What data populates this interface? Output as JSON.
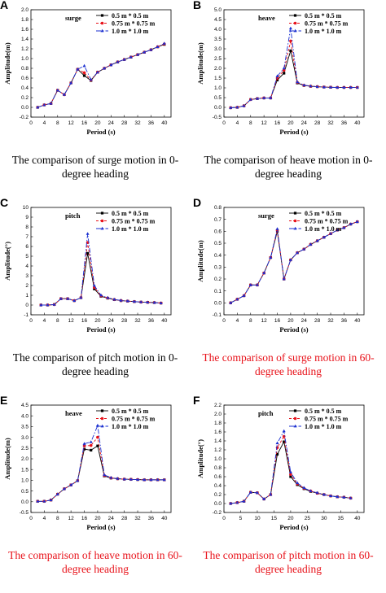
{
  "panels": [
    {
      "letter": "A",
      "caption": "The comparison of surge motion in 0-degree heading",
      "caption_color": "#000000"
    },
    {
      "letter": "B",
      "caption": "The comparison of heave motion in 0-degree heading",
      "caption_color": "#000000"
    },
    {
      "letter": "C",
      "caption": "The comparison of pitch motion in 0-degree heading",
      "caption_color": "#000000"
    },
    {
      "letter": "D",
      "caption": "The comparison of surge motion in 60-degree heading",
      "caption_color": "#e8121a"
    },
    {
      "letter": "E",
      "caption": "The comparison of heave motion in 60-degree heading",
      "caption_color": "#e8121a"
    },
    {
      "letter": "F",
      "caption": "The comparison of pitch motion in 60-degree heading",
      "caption_color": "#e8121a"
    }
  ],
  "series_style": [
    {
      "color": "#000000",
      "marker": "square",
      "dash": ""
    },
    {
      "color": "#e8121a",
      "marker": "circle",
      "dash": "3,2"
    },
    {
      "color": "#1a2fd0",
      "marker": "triangle",
      "dash": "6,2,1.5,2"
    }
  ],
  "chart_data": [
    {
      "type": "line",
      "title": "surge",
      "xlabel": "Period (s)",
      "ylabel": "Amplitude(m)",
      "xlim": [
        0,
        42
      ],
      "ylim": [
        -0.2,
        2.0
      ],
      "xticks": [
        0,
        4,
        8,
        12,
        16,
        20,
        24,
        28,
        32,
        36,
        40
      ],
      "yticks": [
        "-0.2",
        "0.0",
        "0.2",
        "0.4",
        "0.6",
        "0.8",
        "1.0",
        "1.2",
        "1.4",
        "1.6",
        "1.8",
        "2.0"
      ],
      "legend": "top-right",
      "x": [
        2,
        4,
        6,
        8,
        10,
        12,
        14,
        16,
        18,
        20,
        22,
        24,
        26,
        28,
        30,
        32,
        34,
        36,
        38,
        40
      ],
      "series": [
        {
          "name": "0.5 m * 0.5 m",
          "values": [
            0.0,
            0.05,
            0.08,
            0.35,
            0.26,
            0.5,
            0.78,
            0.65,
            0.55,
            0.72,
            0.8,
            0.87,
            0.93,
            0.98,
            1.03,
            1.08,
            1.13,
            1.18,
            1.24,
            1.29
          ]
        },
        {
          "name": "0.75 m * 0.75 m",
          "values": [
            0.0,
            0.05,
            0.08,
            0.35,
            0.26,
            0.5,
            0.78,
            0.71,
            0.56,
            0.72,
            0.8,
            0.87,
            0.93,
            0.98,
            1.03,
            1.08,
            1.13,
            1.18,
            1.24,
            1.3
          ]
        },
        {
          "name": "1.0 m * 1.0 m",
          "values": [
            0.0,
            0.05,
            0.08,
            0.35,
            0.26,
            0.5,
            0.78,
            0.85,
            0.57,
            0.72,
            0.8,
            0.87,
            0.93,
            0.98,
            1.03,
            1.08,
            1.13,
            1.18,
            1.24,
            1.31
          ]
        }
      ]
    },
    {
      "type": "line",
      "title": "heave",
      "xlabel": "Period (s)",
      "ylabel": "Amplitude(m)",
      "xlim": [
        0,
        42
      ],
      "ylim": [
        -0.5,
        5.0
      ],
      "xticks": [
        0,
        4,
        8,
        12,
        16,
        20,
        24,
        28,
        32,
        36,
        40
      ],
      "yticks": [
        "-0.5",
        "0.0",
        "0.5",
        "1.0",
        "1.5",
        "2.0",
        "2.5",
        "3.0",
        "3.5",
        "4.0",
        "4.5",
        "5.0"
      ],
      "legend": "top-right",
      "x": [
        2,
        4,
        6,
        8,
        10,
        12,
        14,
        16,
        18,
        20,
        22,
        24,
        26,
        28,
        30,
        32,
        34,
        36,
        38,
        40
      ],
      "series": [
        {
          "name": "0.5 m * 0.5 m",
          "values": [
            -0.02,
            0.0,
            0.08,
            0.4,
            0.45,
            0.48,
            0.48,
            1.4,
            1.75,
            2.9,
            1.25,
            1.12,
            1.08,
            1.06,
            1.04,
            1.03,
            1.02,
            1.02,
            1.02,
            1.02
          ]
        },
        {
          "name": "0.75 m * 0.75 m",
          "values": [
            -0.02,
            0.0,
            0.08,
            0.4,
            0.45,
            0.48,
            0.48,
            1.5,
            1.9,
            3.4,
            1.28,
            1.13,
            1.08,
            1.06,
            1.04,
            1.03,
            1.02,
            1.02,
            1.02,
            1.02
          ]
        },
        {
          "name": "1.0 m * 1.0 m",
          "values": [
            -0.02,
            0.0,
            0.08,
            0.4,
            0.45,
            0.48,
            0.48,
            1.6,
            2.0,
            4.05,
            1.3,
            1.14,
            1.09,
            1.06,
            1.04,
            1.03,
            1.02,
            1.02,
            1.02,
            1.02
          ]
        }
      ]
    },
    {
      "type": "line",
      "title": "pitch",
      "xlabel": "Period (s)",
      "ylabel": "Amplitude(°)",
      "xlim": [
        0,
        42
      ],
      "ylim": [
        -1,
        10
      ],
      "xticks": [
        0,
        4,
        8,
        12,
        16,
        20,
        24,
        28,
        32,
        36,
        40
      ],
      "yticks": [
        "-1",
        "0",
        "1",
        "2",
        "3",
        "4",
        "5",
        "6",
        "7",
        "8",
        "9",
        "10"
      ],
      "legend": "top-right",
      "x": [
        3,
        5,
        7,
        9,
        11,
        13,
        15,
        17,
        19,
        21,
        23,
        25,
        27,
        29,
        31,
        33,
        35,
        37,
        39
      ],
      "series": [
        {
          "name": "0.5 m * 0.5 m",
          "values": [
            0.0,
            0.0,
            0.05,
            0.65,
            0.65,
            0.45,
            0.75,
            5.3,
            1.65,
            0.9,
            0.7,
            0.55,
            0.45,
            0.4,
            0.35,
            0.3,
            0.28,
            0.25,
            0.2
          ]
        },
        {
          "name": "0.75 m * 0.75 m",
          "values": [
            0.0,
            0.0,
            0.05,
            0.65,
            0.65,
            0.45,
            0.75,
            6.4,
            1.8,
            0.95,
            0.72,
            0.56,
            0.46,
            0.4,
            0.35,
            0.3,
            0.28,
            0.25,
            0.2
          ]
        },
        {
          "name": "1.0 m * 1.0 m",
          "values": [
            0.0,
            0.0,
            0.05,
            0.65,
            0.65,
            0.45,
            0.75,
            7.3,
            2.0,
            1.0,
            0.75,
            0.58,
            0.47,
            0.41,
            0.36,
            0.31,
            0.28,
            0.25,
            0.2
          ]
        }
      ]
    },
    {
      "type": "line",
      "title": "surge",
      "xlabel": "Period (s)",
      "ylabel": "Amplitude(m)",
      "xlim": [
        0,
        42
      ],
      "ylim": [
        -0.1,
        0.8
      ],
      "xticks": [
        0,
        4,
        8,
        12,
        16,
        20,
        24,
        28,
        32,
        36,
        40
      ],
      "yticks": [
        "-0.1",
        "0.0",
        "0.1",
        "0.2",
        "0.3",
        "0.4",
        "0.5",
        "0.6",
        "0.7",
        "0.8"
      ],
      "legend": "top-right",
      "x": [
        2,
        4,
        6,
        8,
        10,
        12,
        14,
        16,
        18,
        20,
        22,
        24,
        26,
        28,
        30,
        32,
        34,
        36,
        38,
        40
      ],
      "series": [
        {
          "name": "0.5 m * 0.5 m",
          "values": [
            0.0,
            0.03,
            0.06,
            0.15,
            0.15,
            0.25,
            0.38,
            0.6,
            0.2,
            0.36,
            0.42,
            0.45,
            0.49,
            0.52,
            0.55,
            0.58,
            0.61,
            0.63,
            0.66,
            0.68
          ]
        },
        {
          "name": "0.75 m * 0.75 m",
          "values": [
            0.0,
            0.03,
            0.06,
            0.15,
            0.15,
            0.25,
            0.38,
            0.61,
            0.2,
            0.36,
            0.42,
            0.45,
            0.49,
            0.52,
            0.55,
            0.58,
            0.61,
            0.63,
            0.66,
            0.68
          ]
        },
        {
          "name": "1.0 m * 1.0 m",
          "values": [
            0.0,
            0.03,
            0.06,
            0.15,
            0.15,
            0.25,
            0.38,
            0.62,
            0.2,
            0.36,
            0.42,
            0.45,
            0.49,
            0.52,
            0.55,
            0.58,
            0.61,
            0.63,
            0.66,
            0.68
          ]
        }
      ]
    },
    {
      "type": "line",
      "title": "heave",
      "xlabel": "Period (s)",
      "ylabel": "Amplitude(m)",
      "xlim": [
        0,
        42
      ],
      "ylim": [
        -0.5,
        4.5
      ],
      "xticks": [
        0,
        4,
        8,
        12,
        16,
        20,
        24,
        28,
        32,
        36,
        40
      ],
      "yticks": [
        "-0.5",
        "0.0",
        "0.5",
        "1.0",
        "1.5",
        "2.0",
        "2.5",
        "3.0",
        "3.5",
        "4.0",
        "4.5"
      ],
      "legend": "top-right",
      "x": [
        2,
        4,
        6,
        8,
        10,
        12,
        14,
        16,
        18,
        20,
        22,
        24,
        26,
        28,
        30,
        32,
        34,
        36,
        38,
        40
      ],
      "series": [
        {
          "name": "0.5 m * 0.5 m",
          "values": [
            0.02,
            0.02,
            0.08,
            0.35,
            0.6,
            0.78,
            0.98,
            2.45,
            2.4,
            2.6,
            1.2,
            1.1,
            1.07,
            1.05,
            1.04,
            1.03,
            1.02,
            1.02,
            1.02,
            1.02
          ]
        },
        {
          "name": "0.75 m * 0.75 m",
          "values": [
            0.02,
            0.02,
            0.08,
            0.35,
            0.6,
            0.78,
            0.98,
            2.6,
            2.62,
            3.0,
            1.22,
            1.11,
            1.07,
            1.05,
            1.04,
            1.03,
            1.02,
            1.02,
            1.02,
            1.02
          ]
        },
        {
          "name": "1.0 m * 1.0 m",
          "values": [
            0.02,
            0.02,
            0.08,
            0.35,
            0.6,
            0.78,
            0.98,
            2.7,
            2.78,
            3.55,
            1.25,
            1.12,
            1.08,
            1.05,
            1.04,
            1.03,
            1.02,
            1.02,
            1.02,
            1.02
          ]
        }
      ]
    },
    {
      "type": "line",
      "title": "pitch",
      "xlabel": "Period (s)",
      "ylabel": "Amplitude(°)",
      "xlim": [
        0,
        42
      ],
      "ylim": [
        -0.2,
        2.2
      ],
      "xticks": [
        0,
        5,
        10,
        15,
        20,
        25,
        30,
        35,
        40
      ],
      "yticks": [
        "-0.2",
        "0.0",
        "0.2",
        "0.4",
        "0.6",
        "0.8",
        "1.0",
        "1.2",
        "1.4",
        "1.6",
        "1.8",
        "2.0",
        "2.2"
      ],
      "legend": "top-right",
      "x": [
        2,
        4,
        6,
        8,
        10,
        12,
        14,
        16,
        18,
        20,
        22,
        24,
        26,
        28,
        30,
        32,
        34,
        36,
        38
      ],
      "series": [
        {
          "name": "0.5 m * 0.5 m",
          "values": [
            0.0,
            0.02,
            0.05,
            0.25,
            0.24,
            0.1,
            0.2,
            1.1,
            1.38,
            0.6,
            0.42,
            0.33,
            0.27,
            0.23,
            0.2,
            0.17,
            0.15,
            0.14,
            0.12
          ]
        },
        {
          "name": "0.75 m * 0.75 m",
          "values": [
            0.0,
            0.02,
            0.05,
            0.25,
            0.24,
            0.1,
            0.2,
            1.25,
            1.5,
            0.65,
            0.44,
            0.34,
            0.28,
            0.23,
            0.2,
            0.17,
            0.15,
            0.14,
            0.12
          ]
        },
        {
          "name": "1.0 m * 1.0 m",
          "values": [
            0.0,
            0.02,
            0.05,
            0.25,
            0.24,
            0.1,
            0.2,
            1.35,
            1.62,
            0.7,
            0.46,
            0.35,
            0.28,
            0.24,
            0.2,
            0.17,
            0.15,
            0.14,
            0.12
          ]
        }
      ]
    }
  ]
}
